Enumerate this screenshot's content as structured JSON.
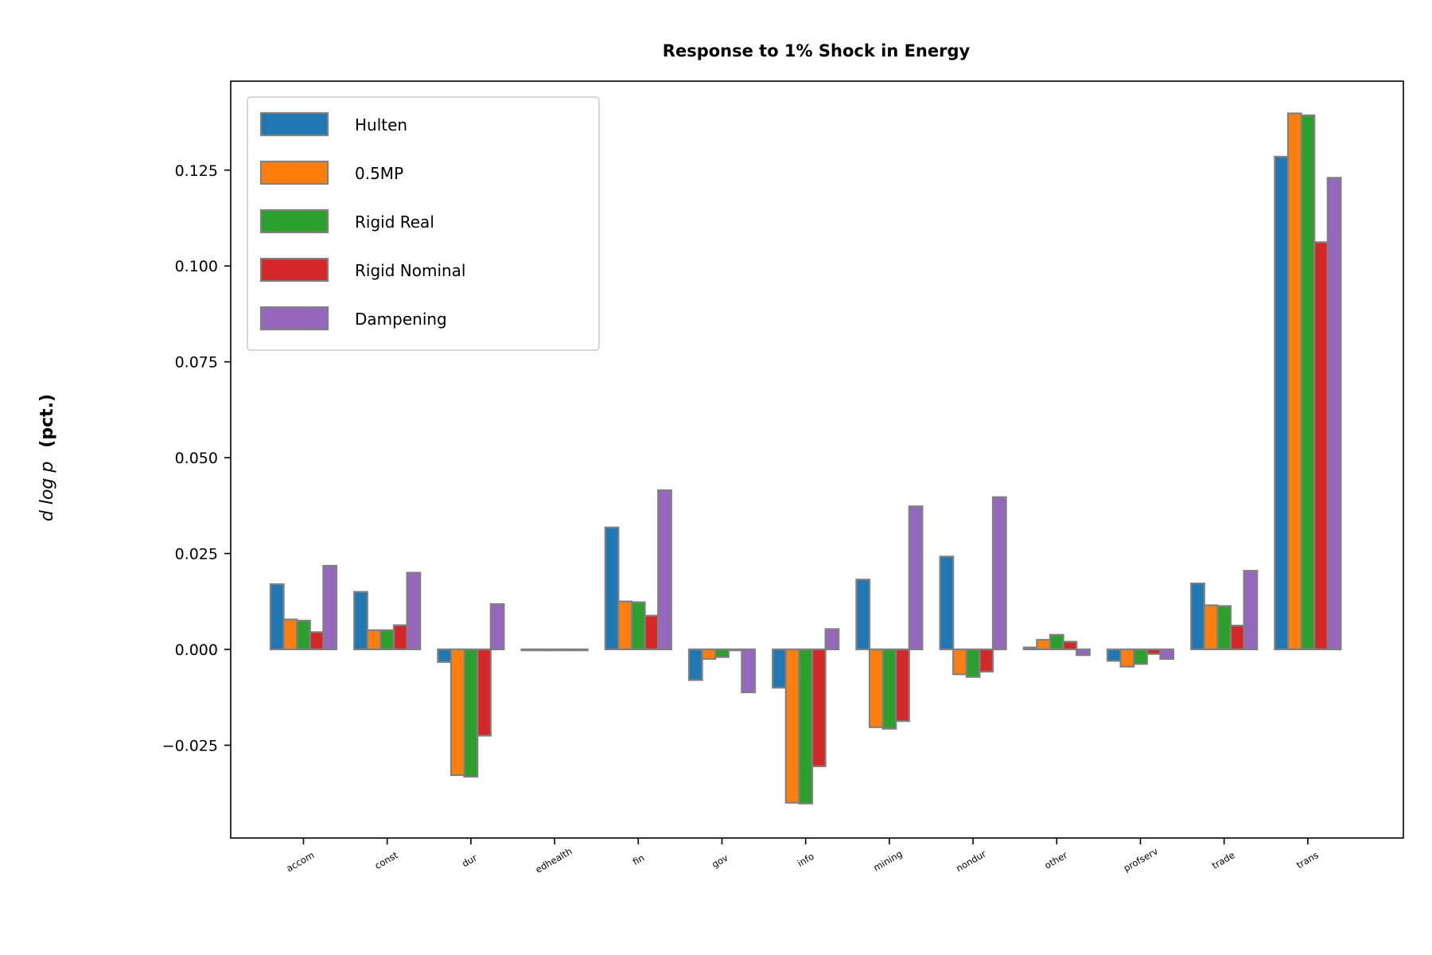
{
  "chart_data": {
    "type": "bar",
    "title": "Response to 1% Shock in Energy",
    "ylabel_prefix": "d log p",
    "ylabel_suffix": "(pct.)",
    "xlabel": "",
    "categories": [
      "accom",
      "const",
      "dur",
      "edhealth",
      "fin",
      "gov",
      "info",
      "mining",
      "nondur",
      "other",
      "profserv",
      "trade",
      "trans"
    ],
    "yticks": [
      -0.025,
      0.0,
      0.025,
      0.05,
      0.075,
      0.1,
      0.125
    ],
    "ytick_labels": [
      "−0.025",
      "0.000",
      "0.025",
      "0.050",
      "0.075",
      "0.100",
      "0.125"
    ],
    "ylim": [
      -0.0492,
      0.1482
    ],
    "grid": false,
    "legend_position": "top-left",
    "series": [
      {
        "name": "Hulten",
        "color": "#1f77b4",
        "values": [
          0.017,
          0.015,
          -0.0033,
          0.0,
          0.0318,
          -0.008,
          -0.01,
          0.0182,
          0.0242,
          0.0005,
          -0.003,
          0.0172,
          0.1285
        ]
      },
      {
        "name": "0.5MP",
        "color": "#ff7f0e",
        "values": [
          0.0078,
          0.005,
          -0.0328,
          0.0,
          0.0125,
          -0.0025,
          -0.04,
          -0.0203,
          -0.0065,
          0.0025,
          -0.0045,
          0.0115,
          0.1398
        ]
      },
      {
        "name": "Rigid Real",
        "color": "#2ca02c",
        "values": [
          0.0075,
          0.005,
          -0.0332,
          0.0,
          0.0123,
          -0.002,
          -0.0402,
          -0.0207,
          -0.0072,
          0.0038,
          -0.0038,
          0.0113,
          0.1393
        ]
      },
      {
        "name": "Rigid Nominal",
        "color": "#d62728",
        "values": [
          0.0045,
          0.0063,
          -0.0225,
          0.0,
          0.0088,
          0.0,
          -0.0305,
          -0.0187,
          -0.0058,
          0.002,
          -0.0012,
          0.0062,
          0.1062
        ]
      },
      {
        "name": "Dampening",
        "color": "#9467bd",
        "values": [
          0.0218,
          0.02,
          0.0118,
          0.0,
          0.0415,
          -0.0112,
          0.0053,
          0.0373,
          0.0397,
          -0.0015,
          -0.0025,
          0.0205,
          0.123
        ]
      }
    ]
  }
}
